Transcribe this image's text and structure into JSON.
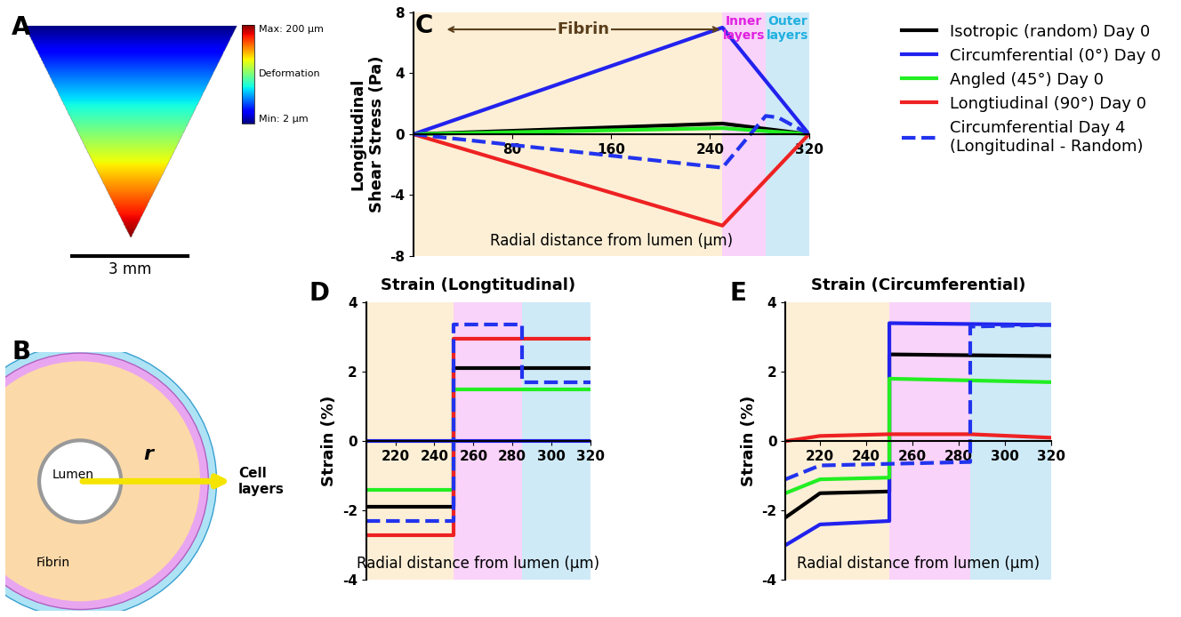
{
  "panel_labels": [
    "A",
    "B",
    "C",
    "D",
    "E"
  ],
  "panel_a": {
    "extent_mm": [
      0,
      5.5,
      0,
      5.5
    ],
    "colorbar": {
      "min": 2,
      "max": 200,
      "max_label": "Max: 200 µm",
      "min_label": "Min: 2 µm",
      "title": "Deformation"
    },
    "scale_bar": {
      "label": "3 mm",
      "length": 3
    }
  },
  "panel_b": {
    "labels": {
      "lumen": "Lumen",
      "fibrin": "Fibrin",
      "radius": "r",
      "cell_layers": "Cell\nlayers"
    }
  },
  "chart_data": [
    {
      "type": "line",
      "x_label": "Radial distance from lumen (µm)",
      "y_label": "Longitudinal\nShear Stress (Pa)",
      "xlim": [
        0,
        320
      ],
      "ylim": [
        -8,
        8
      ],
      "xticks": [
        80,
        160,
        240,
        320
      ],
      "yticks": [
        -8,
        -4,
        0,
        4,
        8
      ],
      "legend": "upper right",
      "regions": [
        {
          "label": "Fibrin",
          "start": 0,
          "end": 250,
          "color": "#fcefd6",
          "text_color": "#5a3e1b"
        },
        {
          "label": "Inner\nlayers",
          "start": 250,
          "end": 285,
          "color": "#f9d3f9",
          "text_color": "#e020e0"
        },
        {
          "label": "Outer\nlayers",
          "start": 285,
          "end": 320,
          "color": "#cfeaf7",
          "text_color": "#1fb0e0"
        }
      ],
      "series": [
        {
          "name": "Isotropic (random) Day 0",
          "color": "#000000",
          "line_style": "solid",
          "x": [
            0,
            250,
            320
          ],
          "values": [
            0,
            0.7,
            0
          ]
        },
        {
          "name": "Circumferential (0°) Day 0",
          "color": "#2222ee",
          "line_style": "solid",
          "x": [
            0,
            250,
            320
          ],
          "values": [
            0,
            7,
            0
          ]
        },
        {
          "name": "Angled (45°) Day 0",
          "color": "#22ee22",
          "line_style": "solid",
          "x": [
            0,
            250,
            320
          ],
          "values": [
            0,
            0.4,
            0
          ]
        },
        {
          "name": "Longtiudinal (90°) Day 0",
          "color": "#ee2222",
          "line_style": "solid",
          "x": [
            0,
            250,
            320
          ],
          "values": [
            0,
            -6,
            0
          ]
        },
        {
          "name": "Circumferential Day 4\n(Longitudinal - Random)",
          "color": "#2233ee",
          "line_style": "dashed",
          "x": [
            0,
            250,
            285,
            295,
            320
          ],
          "values": [
            0,
            -2.2,
            1.2,
            1.1,
            0
          ]
        }
      ]
    },
    {
      "type": "line",
      "title": "Strain (Longtitudinal)",
      "x_label": "Radial distance from lumen (µm)",
      "y_label": "Strain (%)",
      "xlim": [
        205,
        320
      ],
      "ylim": [
        -4,
        4
      ],
      "xticks": [
        220,
        240,
        260,
        280,
        300,
        320
      ],
      "yticks": [
        -4,
        -2,
        0,
        2,
        4
      ],
      "regions": [
        {
          "start": 205,
          "end": 250,
          "color": "#fcefd6"
        },
        {
          "start": 250,
          "end": 285,
          "color": "#f9d3f9"
        },
        {
          "start": 285,
          "end": 320,
          "color": "#cfeaf7"
        }
      ],
      "series": [
        {
          "name": "Isotropic (random) Day 0",
          "color": "#000000",
          "line_style": "solid",
          "x": [
            205,
            250,
            250,
            320
          ],
          "values": [
            -1.9,
            -1.9,
            2.1,
            2.1
          ]
        },
        {
          "name": "Circumferential (0°) Day 0",
          "color": "#2222ee",
          "line_style": "solid",
          "x": [
            205,
            250,
            250,
            320
          ],
          "values": [
            0,
            0,
            0,
            0
          ]
        },
        {
          "name": "Angled (45°) Day 0",
          "color": "#22ee22",
          "line_style": "solid",
          "x": [
            205,
            250,
            250,
            320
          ],
          "values": [
            -1.4,
            -1.4,
            1.5,
            1.5
          ]
        },
        {
          "name": "Longtiudinal (90°) Day 0",
          "color": "#ee2222",
          "line_style": "solid",
          "x": [
            205,
            250,
            250,
            320
          ],
          "values": [
            -2.7,
            -2.7,
            2.95,
            2.95
          ]
        },
        {
          "name": "Circumferential Day 4\n(Longitudinal - Random)",
          "color": "#2233ee",
          "line_style": "dashed",
          "x": [
            205,
            250,
            250,
            285,
            285,
            320
          ],
          "values": [
            -2.3,
            -2.3,
            3.35,
            3.35,
            1.7,
            1.7
          ]
        }
      ]
    },
    {
      "type": "line",
      "title": "Strain (Circumferential)",
      "x_label": "Radial distance from lumen (µm)",
      "y_label": "Strain (%)",
      "xlim": [
        205,
        320
      ],
      "ylim": [
        -4,
        4
      ],
      "xticks": [
        220,
        240,
        260,
        280,
        300,
        320
      ],
      "yticks": [
        -4,
        -2,
        0,
        2,
        4
      ],
      "regions": [
        {
          "start": 205,
          "end": 250,
          "color": "#fcefd6"
        },
        {
          "start": 250,
          "end": 285,
          "color": "#f9d3f9"
        },
        {
          "start": 285,
          "end": 320,
          "color": "#cfeaf7"
        }
      ],
      "series": [
        {
          "name": "Isotropic (random) Day 0",
          "color": "#000000",
          "line_style": "solid",
          "x": [
            205,
            220,
            250,
            250,
            320
          ],
          "values": [
            -2.2,
            -1.5,
            -1.45,
            2.5,
            2.45
          ]
        },
        {
          "name": "Circumferential (0°) Day 0",
          "color": "#2222ee",
          "line_style": "solid",
          "x": [
            205,
            220,
            250,
            250,
            320
          ],
          "values": [
            -3.0,
            -2.4,
            -2.3,
            3.4,
            3.35
          ]
        },
        {
          "name": "Angled (45°) Day 0",
          "color": "#22ee22",
          "line_style": "solid",
          "x": [
            205,
            220,
            250,
            250,
            320
          ],
          "values": [
            -1.5,
            -1.1,
            -1.05,
            1.8,
            1.7
          ]
        },
        {
          "name": "Longtiudinal (90°) Day 0",
          "color": "#ee2222",
          "line_style": "solid",
          "x": [
            205,
            220,
            250,
            285,
            320
          ],
          "values": [
            0,
            0.15,
            0.2,
            0.2,
            0.1
          ]
        },
        {
          "name": "Circumferential Day 4\n(Longitudinal - Random)",
          "color": "#2233ee",
          "line_style": "dashed",
          "x": [
            205,
            220,
            285,
            285,
            320
          ],
          "values": [
            -1.1,
            -0.7,
            -0.6,
            3.3,
            3.35
          ]
        }
      ]
    }
  ]
}
